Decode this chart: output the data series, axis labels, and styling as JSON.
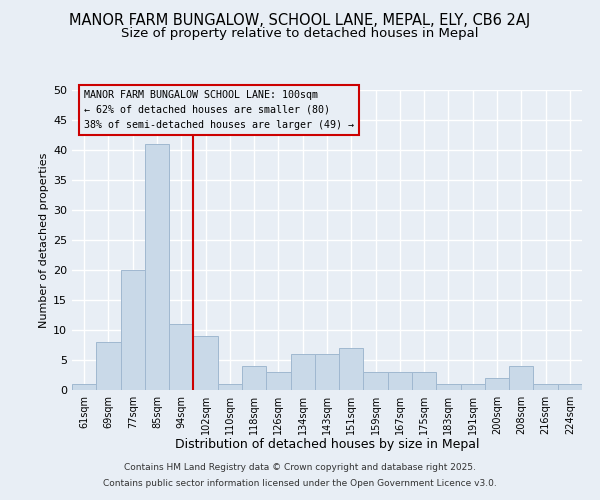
{
  "title": "MANOR FARM BUNGALOW, SCHOOL LANE, MEPAL, ELY, CB6 2AJ",
  "subtitle": "Size of property relative to detached houses in Mepal",
  "xlabel": "Distribution of detached houses by size in Mepal",
  "ylabel": "Number of detached properties",
  "bar_labels": [
    "61sqm",
    "69sqm",
    "77sqm",
    "85sqm",
    "94sqm",
    "102sqm",
    "110sqm",
    "118sqm",
    "126sqm",
    "134sqm",
    "143sqm",
    "151sqm",
    "159sqm",
    "167sqm",
    "175sqm",
    "183sqm",
    "191sqm",
    "200sqm",
    "208sqm",
    "216sqm",
    "224sqm"
  ],
  "bar_values": [
    1,
    8,
    20,
    41,
    11,
    9,
    1,
    4,
    3,
    6,
    6,
    7,
    3,
    3,
    3,
    1,
    1,
    2,
    4,
    1,
    1
  ],
  "bar_color": "#c9d9e8",
  "bar_edge_color": "#a0b8d0",
  "vline_x_index": 5,
  "vline_color": "#cc0000",
  "ylim": [
    0,
    50
  ],
  "yticks": [
    0,
    5,
    10,
    15,
    20,
    25,
    30,
    35,
    40,
    45,
    50
  ],
  "annotation_title": "MANOR FARM BUNGALOW SCHOOL LANE: 100sqm",
  "annotation_line1": "← 62% of detached houses are smaller (80)",
  "annotation_line2": "38% of semi-detached houses are larger (49) →",
  "annotation_box_color": "#cc0000",
  "footer1": "Contains HM Land Registry data © Crown copyright and database right 2025.",
  "footer2": "Contains public sector information licensed under the Open Government Licence v3.0.",
  "bg_color": "#e8eef5",
  "grid_color": "#ffffff",
  "title_fontsize": 10.5,
  "subtitle_fontsize": 9.5
}
